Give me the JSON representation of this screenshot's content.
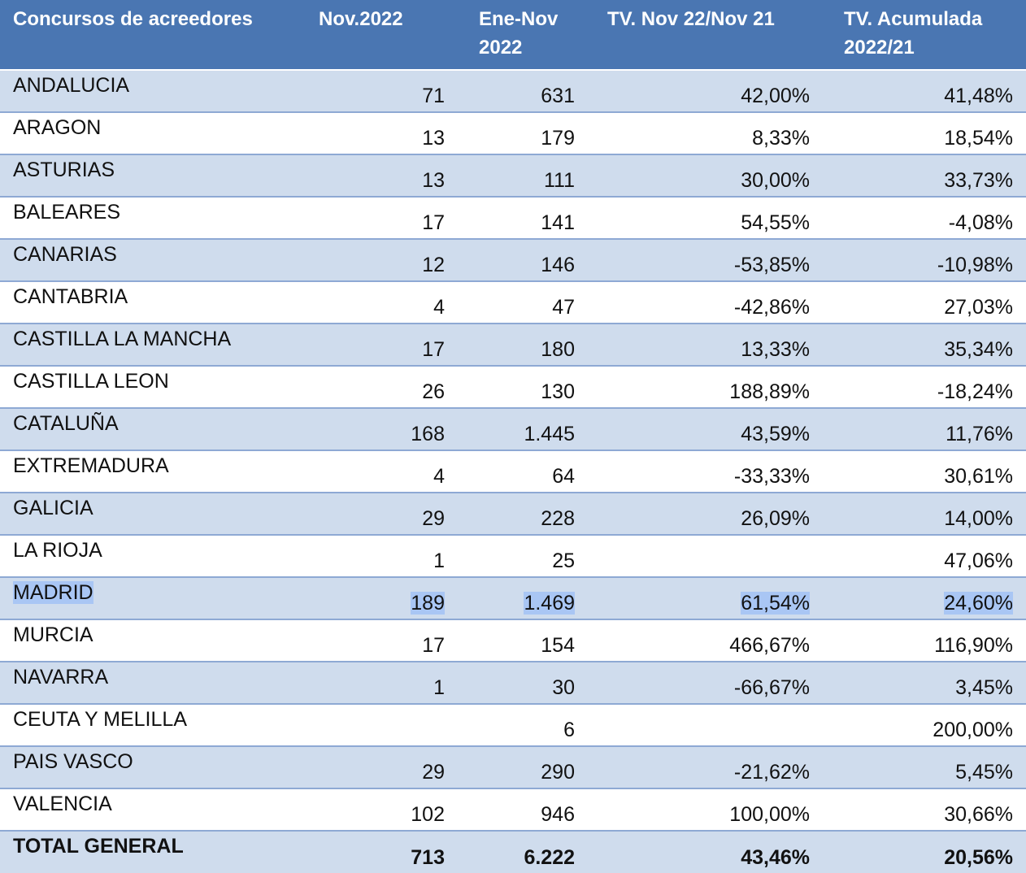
{
  "header": {
    "col_region": "Concursos de acreedores",
    "col_nov": "Nov.2022",
    "col_ene_nov": "Ene-Nov 2022",
    "col_tv_nov": "TV. Nov 22/Nov 21",
    "col_tv_acum": "TV.  Acumulada 2022/21"
  },
  "rows": [
    {
      "region": "ANDALUCIA",
      "nov": "71",
      "ene_nov": "631",
      "tv_nov": "42,00%",
      "tv_acum": "41,48%"
    },
    {
      "region": "ARAGON",
      "nov": "13",
      "ene_nov": "179",
      "tv_nov": "8,33%",
      "tv_acum": "18,54%"
    },
    {
      "region": "ASTURIAS",
      "nov": "13",
      "ene_nov": "111",
      "tv_nov": "30,00%",
      "tv_acum": "33,73%"
    },
    {
      "region": "BALEARES",
      "nov": "17",
      "ene_nov": "141",
      "tv_nov": "54,55%",
      "tv_acum": "-4,08%"
    },
    {
      "region": "CANARIAS",
      "nov": "12",
      "ene_nov": "146",
      "tv_nov": "-53,85%",
      "tv_acum": "-10,98%"
    },
    {
      "region": "CANTABRIA",
      "nov": "4",
      "ene_nov": "47",
      "tv_nov": "-42,86%",
      "tv_acum": "27,03%"
    },
    {
      "region": "CASTILLA LA MANCHA",
      "nov": "17",
      "ene_nov": "180",
      "tv_nov": "13,33%",
      "tv_acum": "35,34%"
    },
    {
      "region": "CASTILLA LEON",
      "nov": "26",
      "ene_nov": "130",
      "tv_nov": "188,89%",
      "tv_acum": "-18,24%"
    },
    {
      "region": "CATALUÑA",
      "nov": "168",
      "ene_nov": "1.445",
      "tv_nov": "43,59%",
      "tv_acum": "11,76%"
    },
    {
      "region": "EXTREMADURA",
      "nov": "4",
      "ene_nov": "64",
      "tv_nov": "-33,33%",
      "tv_acum": "30,61%"
    },
    {
      "region": "GALICIA",
      "nov": "29",
      "ene_nov": "228",
      "tv_nov": "26,09%",
      "tv_acum": "14,00%"
    },
    {
      "region": "LA RIOJA",
      "nov": "1",
      "ene_nov": "25",
      "tv_nov": "",
      "tv_acum": "47,06%"
    },
    {
      "region": "MADRID",
      "nov": "189",
      "ene_nov": "1.469",
      "tv_nov": "61,54%",
      "tv_acum": "24,60%"
    },
    {
      "region": "MURCIA",
      "nov": "17",
      "ene_nov": "154",
      "tv_nov": "466,67%",
      "tv_acum": "116,90%"
    },
    {
      "region": "NAVARRA",
      "nov": "1",
      "ene_nov": "30",
      "tv_nov": "-66,67%",
      "tv_acum": "3,45%"
    },
    {
      "region": "CEUTA Y MELILLA",
      "nov": "",
      "ene_nov": "6",
      "tv_nov": "",
      "tv_acum": "200,00%"
    },
    {
      "region": "PAIS VASCO",
      "nov": "29",
      "ene_nov": "290",
      "tv_nov": "-21,62%",
      "tv_acum": "5,45%"
    },
    {
      "region": "VALENCIA",
      "nov": "102",
      "ene_nov": "946",
      "tv_nov": "100,00%",
      "tv_acum": "30,66%"
    }
  ],
  "total": {
    "region": "TOTAL GENERAL",
    "nov": "713",
    "ene_nov": "6.222",
    "tv_nov": "43,46%",
    "tv_acum": "20,56%"
  },
  "colors": {
    "header_bg": "#4a76b2",
    "shaded_row": "#cfdced",
    "selection": "#a9c6f4"
  }
}
